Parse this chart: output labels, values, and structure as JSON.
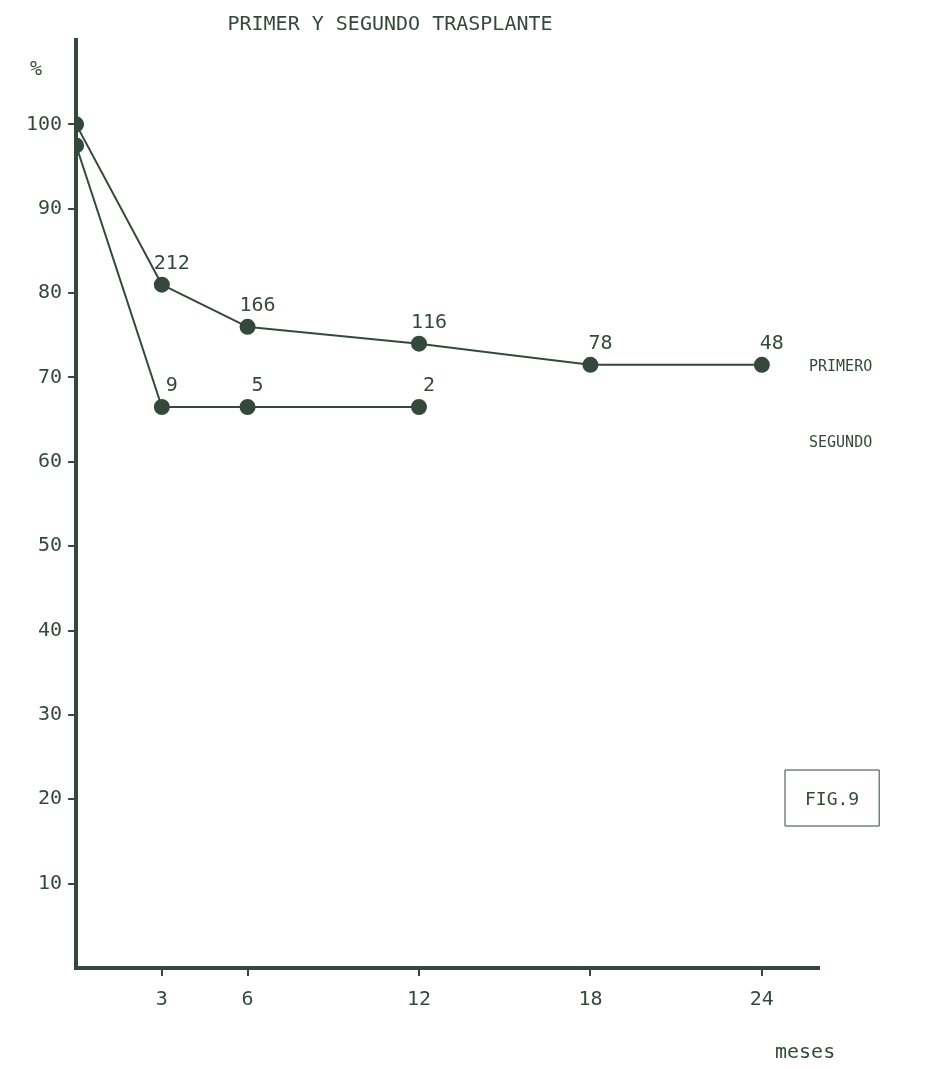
{
  "chart_data": {
    "type": "line",
    "title": "PRIMER Y SEGUNDO TRASPLANTE",
    "xlabel": "meses",
    "ylabel": "%",
    "series": [
      {
        "name": "PRIMERO",
        "color": "#34493c",
        "x": [
          0,
          3,
          6,
          12,
          18,
          24
        ],
        "values": [
          100,
          81,
          76,
          74,
          71.5,
          71.5
        ]
      },
      {
        "name": "SEGUNDO",
        "color": "#34493c",
        "x": [
          0,
          3,
          6,
          12
        ],
        "values": [
          97.5,
          66.5,
          66.5,
          66.5
        ]
      }
    ],
    "xlim": [
      0,
      26
    ],
    "ylim": [
      0,
      110
    ],
    "xticks": [
      3,
      6,
      12,
      18,
      24
    ],
    "yticks": [
      10,
      20,
      30,
      40,
      50,
      60,
      70,
      80,
      90,
      100
    ],
    "grid": false,
    "legend": false,
    "marker": "circle",
    "line_style": "solid",
    "annotations": [
      {
        "text": "212",
        "x": 3,
        "y": 81
      },
      {
        "text": "166",
        "x": 6,
        "y": 76
      },
      {
        "text": "116",
        "x": 12,
        "y": 74
      },
      {
        "text": "78",
        "x": 18,
        "y": 71.5
      },
      {
        "text": "48",
        "x": 24,
        "y": 71.5
      },
      {
        "text": "9",
        "x": 3,
        "y": 66.5
      },
      {
        "text": "5",
        "x": 6,
        "y": 66.5
      },
      {
        "text": "2",
        "x": 12,
        "y": 66.5
      },
      "FIG.9"
    ]
  }
}
